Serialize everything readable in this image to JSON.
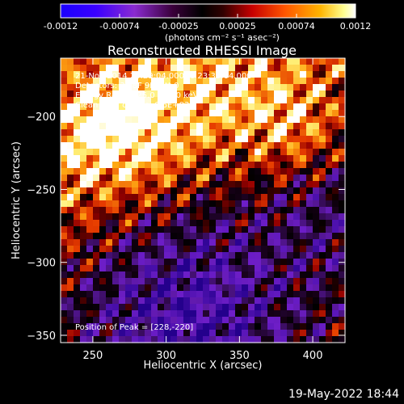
{
  "colorbar": {
    "ticks": [
      "-0.0012",
      "-0.00074",
      "-0.00025",
      "0.00025",
      "0.00074",
      "0.0012"
    ],
    "unit_label": "(photons cm⁻² s⁻¹ asec⁻²)"
  },
  "annotations": {
    "line1": "21-Nov-2014 23:29:04.000 to 23:35:04.000",
    "line2": "Detectors: 3F 8F 9F, Att 0",
    "line3": "Energy Range: 25.0 - 50.0 keV",
    "line4": "Clean    Total counts: 6.6E+03",
    "peak": "Position of Peak = [228,-220]"
  },
  "footer": {
    "date": "19-May-2022 18:44"
  },
  "chart_data": {
    "type": "heatmap",
    "title": "Reconstructed RHESSI Image",
    "xlabel": "Heliocentric X (arcsec)",
    "ylabel": "Heliocentric Y (arcsec)",
    "xlim": [
      228,
      422
    ],
    "ylim": [
      -355,
      -160
    ],
    "xticks": [
      250,
      300,
      350,
      400
    ],
    "yticks": [
      -200,
      -250,
      -300,
      -350
    ],
    "color_range": [
      -0.0012,
      0.0012
    ],
    "colormap": "purple-black-red-yellow-white",
    "peak": [
      228,
      -220
    ]
  }
}
